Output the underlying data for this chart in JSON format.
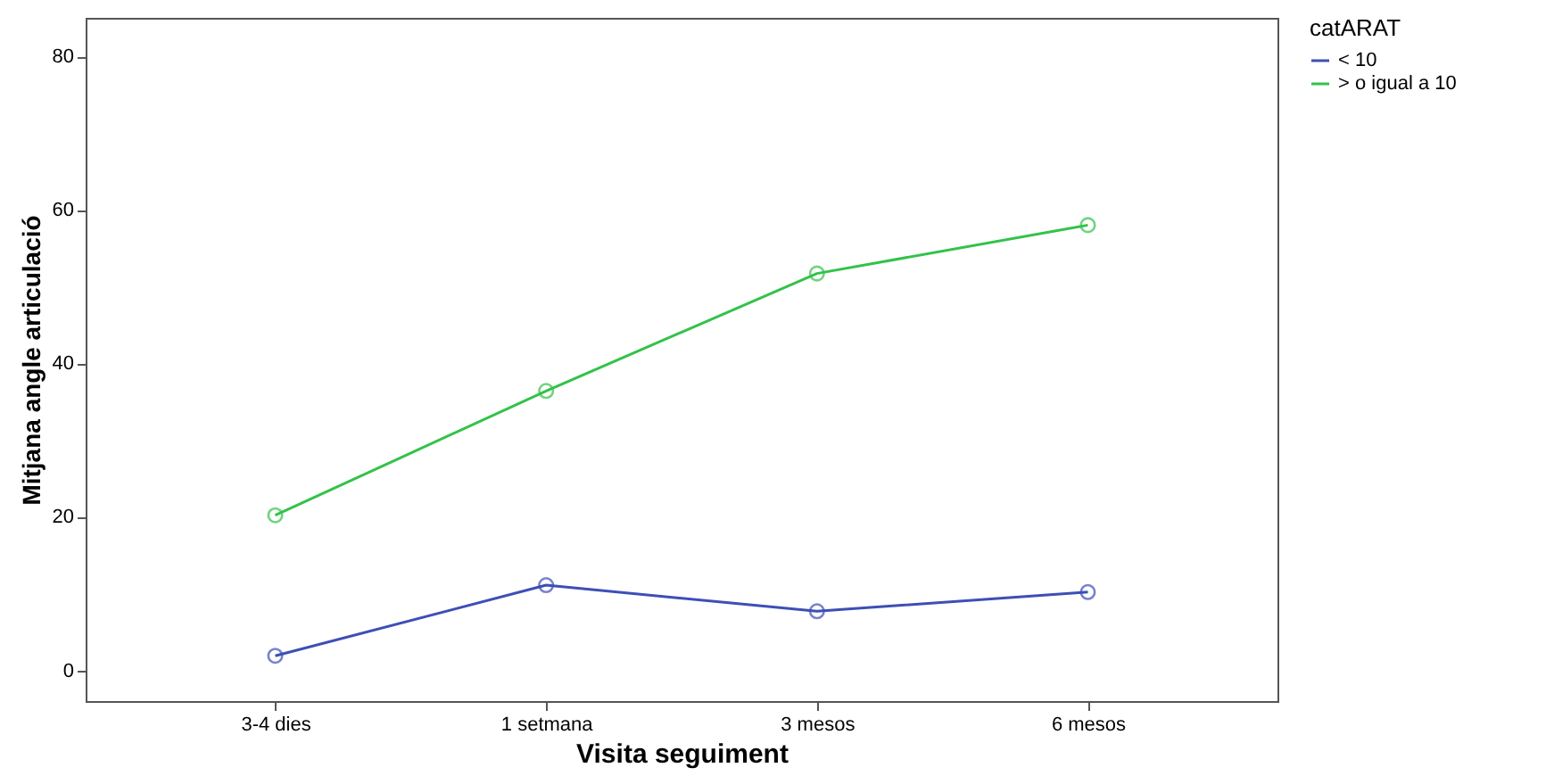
{
  "chart_data": {
    "type": "line",
    "xlabel": "Visita seguiment",
    "ylabel": "Mitjana angle articulació",
    "legend_title": "catARAT",
    "categories": [
      "3-4 dies",
      "1 setmana",
      "3 mesos",
      "6 mesos"
    ],
    "series": [
      {
        "name": "< 10",
        "color": "#3d4fb5",
        "values": [
          1.9,
          11.1,
          7.7,
          10.2
        ]
      },
      {
        "name": "> o igual a 10",
        "color": "#33c24a",
        "values": [
          20.2,
          36.4,
          51.7,
          58
        ]
      }
    ],
    "ylim": [
      -4,
      85
    ],
    "yticks": [
      0,
      20,
      40,
      60,
      80
    ],
    "grid": false,
    "legend": "top right",
    "marker": "circle",
    "line_style": "solid"
  }
}
